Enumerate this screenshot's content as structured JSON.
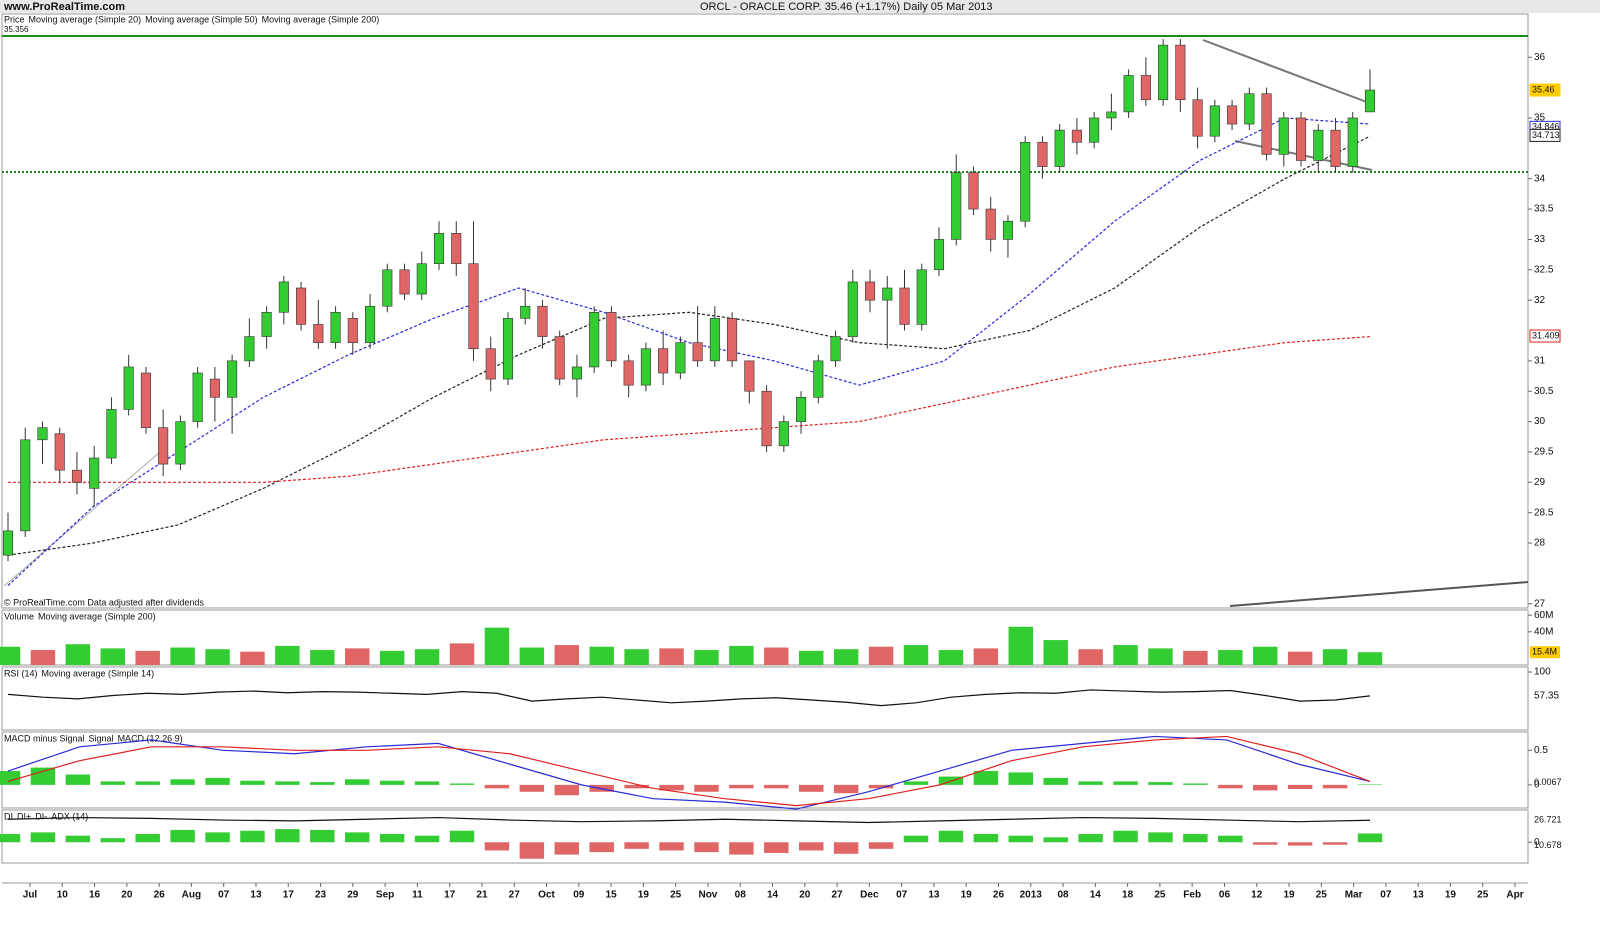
{
  "header": {
    "site": "www.ProRealTime.com",
    "title": "ORCL - ORACLE CORP.   35.46 (+1.17%)   Daily  05 Mar 2013"
  },
  "chart_data": [
    {
      "type": "candlestick",
      "panel": "price",
      "legend": [
        "Price",
        "Moving average (Simple 20)",
        "Moving average (Simple 50)",
        "Moving average (Simple 200)"
      ],
      "top_value": "35.356",
      "footer": "© ProRealTime.com  Data adjusted after dividends",
      "ylim": [
        26.93,
        36.35
      ],
      "yticks": [
        36,
        35,
        34,
        33.5,
        33,
        32.5,
        32,
        31,
        30.5,
        30,
        29.5,
        29,
        28.5,
        28,
        27
      ],
      "up_color": "#33cc33",
      "down_color": "#e06666",
      "candles": [
        [
          27.8,
          28.5,
          27.7,
          28.2
        ],
        [
          28.2,
          29.9,
          28.1,
          29.7
        ],
        [
          29.7,
          30.0,
          29.3,
          29.9
        ],
        [
          29.8,
          29.9,
          29.0,
          29.2
        ],
        [
          29.2,
          29.5,
          28.8,
          29.0
        ],
        [
          28.9,
          29.6,
          28.6,
          29.4
        ],
        [
          29.4,
          30.4,
          29.3,
          30.2
        ],
        [
          30.2,
          31.1,
          30.1,
          30.9
        ],
        [
          30.8,
          30.9,
          29.8,
          29.9
        ],
        [
          29.9,
          30.2,
          29.1,
          29.3
        ],
        [
          29.3,
          30.1,
          29.2,
          30.0
        ],
        [
          30.0,
          30.9,
          29.9,
          30.8
        ],
        [
          30.7,
          30.9,
          30.0,
          30.4
        ],
        [
          30.4,
          31.1,
          29.8,
          31.0
        ],
        [
          31.0,
          31.7,
          30.9,
          31.4
        ],
        [
          31.4,
          31.9,
          31.2,
          31.8
        ],
        [
          31.8,
          32.4,
          31.6,
          32.3
        ],
        [
          32.2,
          32.3,
          31.5,
          31.6
        ],
        [
          31.6,
          32.0,
          31.2,
          31.3
        ],
        [
          31.3,
          31.9,
          31.2,
          31.8
        ],
        [
          31.7,
          31.8,
          31.1,
          31.3
        ],
        [
          31.3,
          32.1,
          31.2,
          31.9
        ],
        [
          31.9,
          32.6,
          31.8,
          32.5
        ],
        [
          32.5,
          32.6,
          32.0,
          32.1
        ],
        [
          32.1,
          32.8,
          32.0,
          32.6
        ],
        [
          32.6,
          33.3,
          32.5,
          33.1
        ],
        [
          33.1,
          33.3,
          32.4,
          32.6
        ],
        [
          32.6,
          33.3,
          31.0,
          31.2
        ],
        [
          31.2,
          31.4,
          30.5,
          30.7
        ],
        [
          30.7,
          31.8,
          30.6,
          31.7
        ],
        [
          31.7,
          32.2,
          31.6,
          31.9
        ],
        [
          31.9,
          32.0,
          31.2,
          31.4
        ],
        [
          31.4,
          31.5,
          30.6,
          30.7
        ],
        [
          30.7,
          31.1,
          30.4,
          30.9
        ],
        [
          30.9,
          31.9,
          30.8,
          31.8
        ],
        [
          31.8,
          31.9,
          30.9,
          31.0
        ],
        [
          31.0,
          31.1,
          30.4,
          30.6
        ],
        [
          30.6,
          31.3,
          30.5,
          31.2
        ],
        [
          31.2,
          31.5,
          30.6,
          30.8
        ],
        [
          30.8,
          31.4,
          30.7,
          31.3
        ],
        [
          31.3,
          31.9,
          30.9,
          31.0
        ],
        [
          31.0,
          31.9,
          30.9,
          31.7
        ],
        [
          31.7,
          31.8,
          30.9,
          31.0
        ],
        [
          31.0,
          31.0,
          30.3,
          30.5
        ],
        [
          30.5,
          30.6,
          29.5,
          29.6
        ],
        [
          29.6,
          30.1,
          29.5,
          30.0
        ],
        [
          30.0,
          30.5,
          29.8,
          30.4
        ],
        [
          30.4,
          31.1,
          30.3,
          31.0
        ],
        [
          31.0,
          31.5,
          30.9,
          31.4
        ],
        [
          31.4,
          32.5,
          31.3,
          32.3
        ],
        [
          32.3,
          32.5,
          31.8,
          32.0
        ],
        [
          32.0,
          32.4,
          31.2,
          32.2
        ],
        [
          32.2,
          32.5,
          31.5,
          31.6
        ],
        [
          31.6,
          32.6,
          31.5,
          32.5
        ],
        [
          32.5,
          33.2,
          32.4,
          33.0
        ],
        [
          33.0,
          34.4,
          32.9,
          34.1
        ],
        [
          34.1,
          34.2,
          33.4,
          33.5
        ],
        [
          33.5,
          33.7,
          32.8,
          33.0
        ],
        [
          33.0,
          33.4,
          32.7,
          33.3
        ],
        [
          33.3,
          34.7,
          33.2,
          34.6
        ],
        [
          34.6,
          34.7,
          34.0,
          34.2
        ],
        [
          34.2,
          34.9,
          34.1,
          34.8
        ],
        [
          34.8,
          35.0,
          34.4,
          34.6
        ],
        [
          34.6,
          35.1,
          34.5,
          35.0
        ],
        [
          35.0,
          35.4,
          34.8,
          35.1
        ],
        [
          35.1,
          35.8,
          35.0,
          35.7
        ],
        [
          35.7,
          36.0,
          35.2,
          35.3
        ],
        [
          35.3,
          36.3,
          35.2,
          36.2
        ],
        [
          36.2,
          36.3,
          35.1,
          35.3
        ],
        [
          35.3,
          35.5,
          34.5,
          34.7
        ],
        [
          34.7,
          35.3,
          34.6,
          35.2
        ],
        [
          35.2,
          35.3,
          34.8,
          34.9
        ],
        [
          34.9,
          35.5,
          34.8,
          35.4
        ],
        [
          35.4,
          35.5,
          34.3,
          34.4
        ],
        [
          34.4,
          35.1,
          34.2,
          35.0
        ],
        [
          35.0,
          35.1,
          34.2,
          34.3
        ],
        [
          34.3,
          34.9,
          34.1,
          34.8
        ],
        [
          34.8,
          35.0,
          34.1,
          34.2
        ],
        [
          34.2,
          35.1,
          34.1,
          35.0
        ],
        [
          35.1,
          35.8,
          35.1,
          35.46
        ]
      ],
      "series": [
        {
          "name": "Moving average (Simple 20)",
          "color": "#2a2ad8",
          "values": [
            27.3,
            28.6,
            29.5,
            30.4,
            31.1,
            31.7,
            32.2,
            31.8,
            31.3,
            31.0,
            30.6,
            31.0,
            32.1,
            33.3,
            34.3,
            35.0,
            34.9
          ]
        },
        {
          "name": "Moving average (Simple 50)",
          "color": "#222222",
          "values": [
            27.8,
            28.0,
            28.3,
            28.9,
            29.6,
            30.4,
            31.1,
            31.7,
            31.8,
            31.6,
            31.3,
            31.2,
            31.5,
            32.2,
            33.2,
            34.0,
            34.7
          ]
        },
        {
          "name": "Moving average (Simple 200)",
          "color": "#e02020",
          "values": [
            29.0,
            29.0,
            29.0,
            29.0,
            29.1,
            29.3,
            29.5,
            29.7,
            29.8,
            29.9,
            30.0,
            30.3,
            30.6,
            30.9,
            31.1,
            31.3,
            31.4
          ]
        }
      ],
      "markers": [
        {
          "value": 35.46,
          "label": "35.46",
          "color": "#ffcc00"
        },
        {
          "value": 34.846,
          "label": "34.846",
          "color": "#2a2ad8"
        },
        {
          "value": 34.713,
          "label": "34.713",
          "color": "#222222"
        },
        {
          "value": 31.409,
          "label": "31.409",
          "color": "#e02020"
        }
      ],
      "xticks": [
        "Jul",
        "10",
        "16",
        "20",
        "26",
        "Aug",
        "07",
        "13",
        "17",
        "23",
        "29",
        "Sep",
        "11",
        "17",
        "21",
        "27",
        "Oct",
        "09",
        "15",
        "19",
        "25",
        "Nov",
        "08",
        "14",
        "20",
        "27",
        "Dec",
        "07",
        "13",
        "19",
        "26",
        "2013",
        "08",
        "14",
        "18",
        "25",
        "Feb",
        "06",
        "12",
        "19",
        "25",
        "Mar",
        "07",
        "13",
        "19",
        "25",
        "Apr"
      ]
    },
    {
      "type": "bar",
      "panel": "volume",
      "legend": [
        "Volume",
        "Moving average (Simple 200)"
      ],
      "color": "#33cc33",
      "ylim": [
        0,
        65
      ],
      "yticks": [
        {
          "value": 60,
          "label": "60M"
        },
        {
          "value": 40,
          "label": "40M"
        }
      ],
      "values": [
        22,
        18,
        25,
        20,
        17,
        21,
        19,
        16,
        23,
        18,
        20,
        17,
        19,
        26,
        45,
        21,
        24,
        22,
        19,
        20,
        18,
        23,
        21,
        17,
        19,
        22,
        24,
        18,
        20,
        46,
        30,
        19,
        24,
        20,
        17,
        18,
        22,
        16,
        19,
        15.4
      ],
      "value_labels": {
        "39": "15.4M"
      }
    },
    {
      "type": "line",
      "panel": "rsi",
      "legend": [
        "RSI (14)",
        "Moving average (Simple 14)"
      ],
      "color": "#111111",
      "ylim": [
        0,
        100
      ],
      "yticks": [
        100
      ],
      "values": [
        60,
        55,
        52,
        58,
        62,
        60,
        64,
        66,
        63,
        65,
        64,
        62,
        60,
        65,
        62,
        48,
        52,
        55,
        50,
        45,
        48,
        52,
        54,
        50,
        46,
        40,
        45,
        55,
        60,
        63,
        62,
        68,
        66,
        64,
        65,
        67,
        58,
        48,
        50,
        57.35
      ]
    },
    {
      "type": "macd",
      "panel": "macd",
      "legend": [
        "MACD minus Signal",
        "Signal",
        "MACD (12 26 9)"
      ],
      "ylim": [
        -0.32,
        0.75
      ],
      "yticks": [
        0.5,
        0
      ],
      "histogram": [
        0.2,
        0.25,
        0.15,
        0.05,
        0.05,
        0.08,
        0.1,
        0.06,
        0.05,
        0.04,
        0.08,
        0.06,
        0.05,
        0.02,
        -0.05,
        -0.1,
        -0.15,
        -0.1,
        -0.05,
        -0.08,
        -0.1,
        -0.05,
        -0.05,
        -0.1,
        -0.12,
        -0.05,
        0.05,
        0.12,
        0.2,
        0.18,
        0.1,
        0.05,
        0.05,
        0.04,
        0.02,
        -0.05,
        -0.08,
        -0.06,
        -0.05,
        0.0067
      ],
      "series": [
        {
          "name": "MACD (12 26 9)",
          "color": "#2a2ad8",
          "values": [
            0.2,
            0.55,
            0.65,
            0.5,
            0.45,
            0.55,
            0.6,
            0.3,
            0.0,
            -0.2,
            -0.25,
            -0.35,
            -0.1,
            0.2,
            0.5,
            0.6,
            0.7,
            0.65,
            0.3,
            0.05
          ]
        },
        {
          "name": "Signal",
          "color": "#e02020",
          "values": [
            0.05,
            0.35,
            0.55,
            0.55,
            0.5,
            0.5,
            0.55,
            0.45,
            0.2,
            -0.05,
            -0.2,
            -0.3,
            -0.2,
            0.0,
            0.35,
            0.55,
            0.65,
            0.7,
            0.45,
            0.05
          ]
        }
      ]
    },
    {
      "type": "adx",
      "panel": "adx",
      "legend": [
        "DI",
        "DI+",
        "DI-",
        "ADX (14)"
      ],
      "ylim": [
        -24,
        38
      ],
      "yticks": [
        0
      ],
      "histogram": [
        10,
        12,
        8,
        5,
        10,
        15,
        12,
        14,
        16,
        15,
        12,
        10,
        8,
        14,
        -10,
        -20,
        -15,
        -12,
        -8,
        -10,
        -12,
        -15,
        -13,
        -10,
        -14,
        -8,
        8,
        14,
        10,
        8,
        6,
        10,
        14,
        12,
        10,
        8,
        -3,
        -4,
        -3,
        10.678
      ],
      "series": [
        {
          "name": "ADX (14)",
          "color": "#111111",
          "values": [
            28,
            30,
            29,
            27,
            26,
            28,
            30,
            27,
            25,
            26,
            28,
            26,
            24,
            26,
            28,
            30,
            29,
            27,
            25,
            26.721
          ]
        }
      ]
    }
  ]
}
